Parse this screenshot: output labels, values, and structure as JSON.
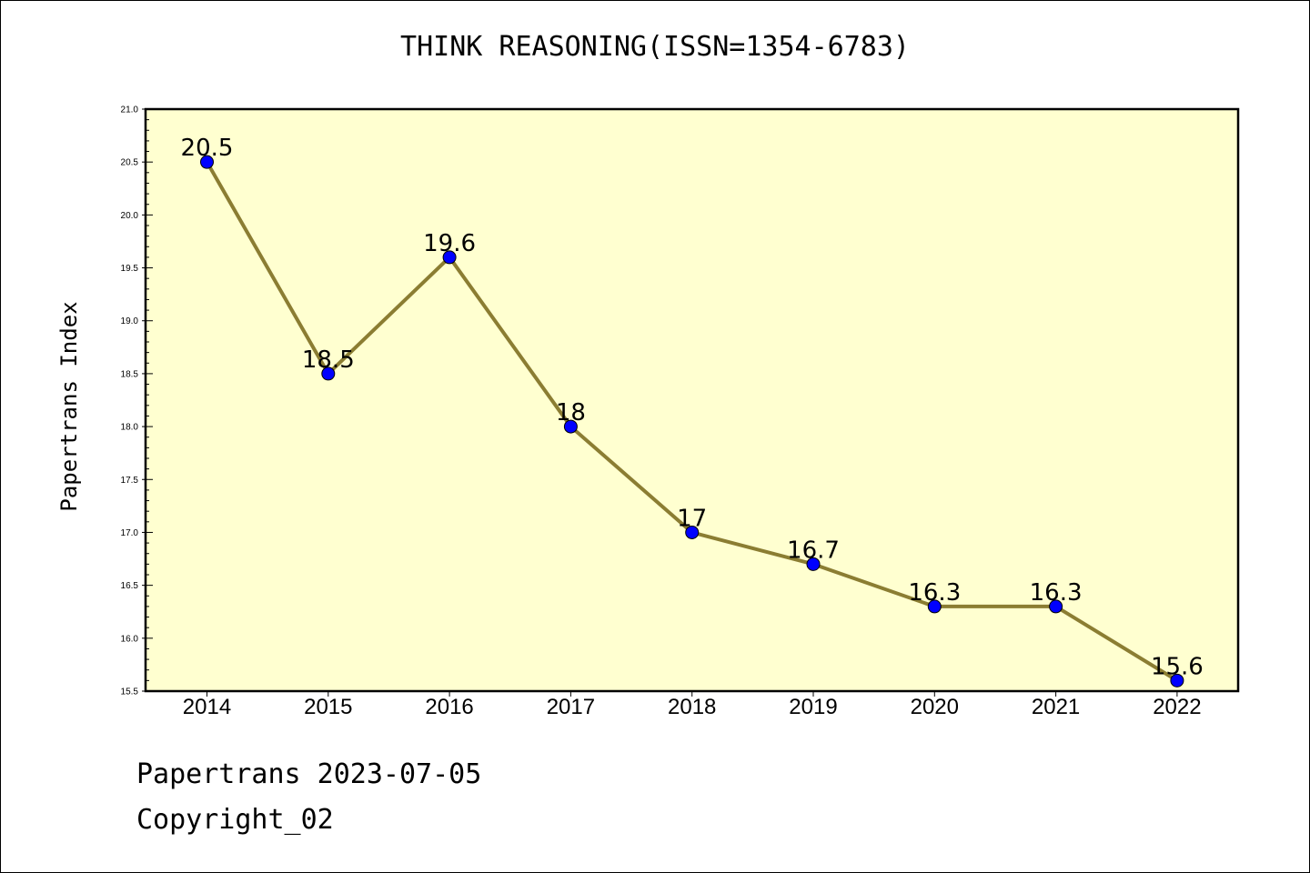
{
  "chart_data": {
    "type": "line",
    "title": "THINK REASONING(ISSN=1354-6783)",
    "xlabel": "",
    "ylabel": "Papertrans Index",
    "categories": [
      "2014",
      "2015",
      "2016",
      "2017",
      "2018",
      "2019",
      "2020",
      "2021",
      "2022"
    ],
    "series": [
      {
        "values": [
          20.5,
          18.5,
          19.6,
          18.0,
          17.0,
          16.7,
          16.3,
          16.3,
          15.6
        ],
        "data_labels": [
          "20.5",
          "18.5",
          "19.6",
          "18",
          "17",
          "16.7",
          "16.3",
          "16.3",
          "15.6"
        ],
        "line_color": "#8b7d32",
        "marker_color": "#0000ff"
      }
    ],
    "ylim": [
      15.5,
      21.0
    ],
    "yticks": [
      "15.5",
      "16.0",
      "16.5",
      "17.0",
      "17.5",
      "18.0",
      "18.5",
      "19.0",
      "19.5",
      "20.0",
      "20.5",
      "21.0"
    ],
    "plot_background": "#ffffd0",
    "grid": false,
    "legend": "none"
  },
  "footer": {
    "line1": "Papertrans 2023-07-05",
    "line2": "Copyright_02"
  }
}
